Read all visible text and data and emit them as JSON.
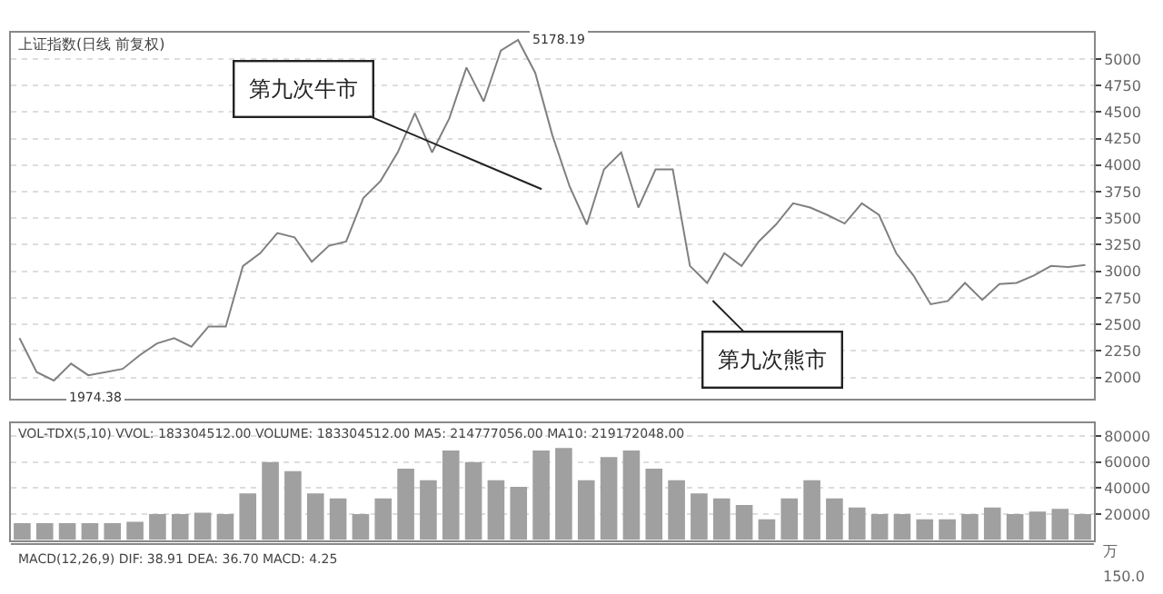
{
  "chart_data": [
    {
      "type": "line",
      "title": "上证指数(日线 前复权)",
      "color": "#808080",
      "grid": "y",
      "line_style": "solid",
      "categories": [
        null,
        null,
        null,
        null,
        null,
        null,
        null,
        null,
        null,
        null,
        null,
        null,
        null,
        null,
        null,
        null,
        null,
        null,
        null,
        null,
        null,
        null,
        null,
        null,
        null,
        null,
        null,
        null,
        null,
        null,
        null,
        null,
        null,
        null,
        null,
        null,
        null,
        null,
        null,
        null,
        null,
        null,
        null,
        null,
        null,
        null,
        null,
        null,
        null,
        null,
        null,
        null,
        null,
        null,
        null,
        null,
        null,
        null,
        null,
        null,
        null,
        null,
        null
      ],
      "values": [
        2370,
        2050,
        1970,
        2130,
        2020,
        2050,
        2080,
        2210,
        2320,
        2370,
        2290,
        2480,
        2480,
        3050,
        3170,
        3360,
        3320,
        3090,
        3240,
        3280,
        3690,
        3850,
        4120,
        4490,
        4120,
        4440,
        4920,
        4600,
        5080,
        5180,
        4870,
        4280,
        3800,
        3440,
        3960,
        4120,
        3600,
        3960,
        3960,
        3050,
        2890,
        3170,
        3050,
        3280,
        3440,
        3640,
        3600,
        3530,
        3450,
        3640,
        3530,
        3170,
        2960,
        2690,
        2720,
        2890,
        2730,
        2880,
        2890,
        2960,
        3050,
        3040,
        3060
      ],
      "ylim": [
        1800,
        5250
      ],
      "yticks": [
        2000,
        2250,
        2500,
        2750,
        3000,
        3250,
        3500,
        3750,
        4000,
        4250,
        4500,
        4750,
        5000
      ],
      "annotations": [
        "5178.19",
        "1974.38",
        "第九次牛市",
        "第九次熊市"
      ]
    },
    {
      "type": "bar",
      "title": "VOL-TDX(5,10) VVOL: 183304512.00 VOLUME: 183304512.00 MA5: 214777056.00 MA10: 219172048.00",
      "color": "#a0a0a0",
      "grid": "y",
      "ylabel": "万",
      "categories": [
        null,
        null,
        null,
        null,
        null,
        null,
        null,
        null,
        null,
        null,
        null,
        null,
        null,
        null,
        null,
        null,
        null,
        null,
        null,
        null,
        null,
        null,
        null,
        null,
        null,
        null,
        null,
        null,
        null,
        null,
        null,
        null,
        null,
        null,
        null,
        null,
        null,
        null,
        null,
        null,
        null,
        null,
        null,
        null,
        null,
        null,
        null,
        null
      ],
      "values": [
        13000,
        13000,
        13000,
        13000,
        13000,
        14000,
        20000,
        20000,
        21000,
        20000,
        36000,
        60000,
        53000,
        36000,
        32000,
        20000,
        32000,
        55000,
        46000,
        69000,
        60000,
        46000,
        41000,
        69000,
        71000,
        46000,
        64000,
        69000,
        55000,
        46000,
        36000,
        32000,
        27000,
        16000,
        32000,
        46000,
        32000,
        25000,
        20000,
        20000,
        16000,
        16000,
        20000,
        25000,
        20000,
        22000,
        24000,
        20000
      ],
      "ylim": [
        0,
        90000
      ],
      "yticks": [
        20000,
        40000,
        60000,
        80000
      ]
    },
    {
      "type": "other",
      "title": "MACD(12,26,9) DIF: 38.91 DEA: 36.70 MACD: 4.25",
      "annotations": [
        "150.0"
      ]
    }
  ]
}
